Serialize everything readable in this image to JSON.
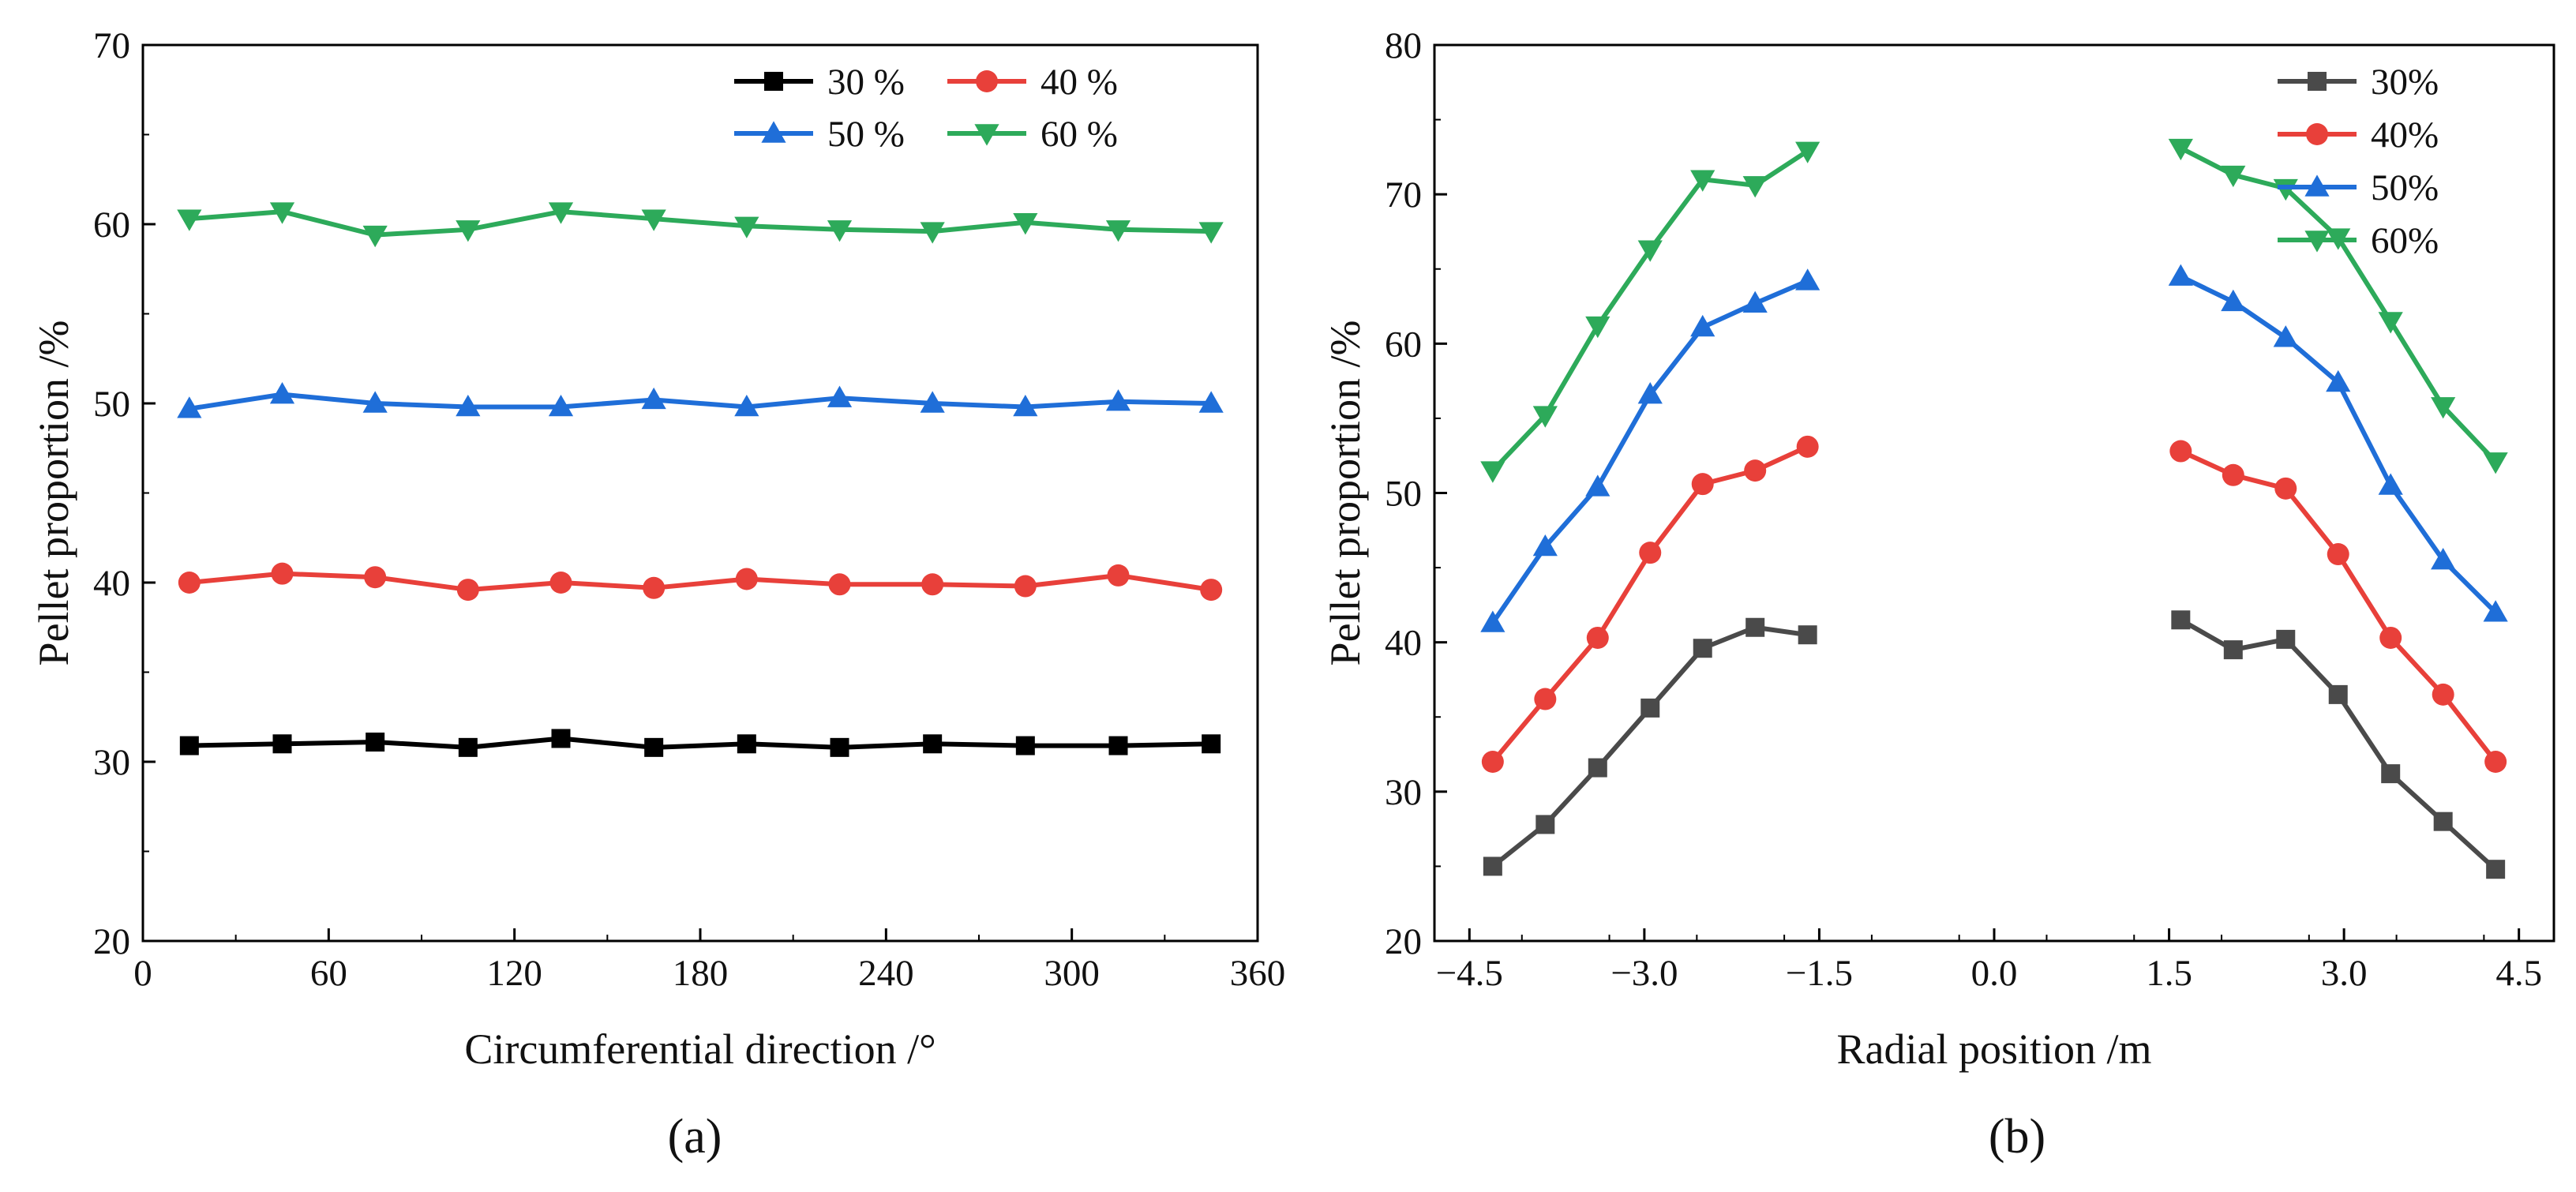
{
  "chart_data": [
    {
      "type": "line",
      "caption": "(a)",
      "xlabel": "Circumferential direction /°",
      "ylabel": "Pellet proportion /%",
      "xlim": [
        0,
        360
      ],
      "ylim": [
        20,
        70
      ],
      "xticks": [
        "0",
        "60",
        "120",
        "180",
        "240",
        "300",
        "360"
      ],
      "yticks": [
        "20",
        "30",
        "40",
        "50",
        "60",
        "70"
      ],
      "legend_position": "top-right",
      "legend_columns": 2,
      "x": [
        15,
        45,
        75,
        105,
        135,
        165,
        195,
        225,
        255,
        285,
        315,
        345
      ],
      "series": [
        {
          "name": "30 %",
          "color": "#000000",
          "marker": "square",
          "values": [
            30.9,
            31.0,
            31.1,
            30.8,
            31.3,
            30.8,
            31.0,
            30.8,
            31.0,
            30.9,
            30.9,
            31.0
          ]
        },
        {
          "name": "40 %",
          "color": "#e8403a",
          "marker": "circle",
          "values": [
            40.0,
            40.5,
            40.3,
            39.6,
            40.0,
            39.7,
            40.2,
            39.9,
            39.9,
            39.8,
            40.4,
            39.6
          ]
        },
        {
          "name": "50 %",
          "color": "#1f6ed8",
          "marker": "triangle-up",
          "values": [
            49.7,
            50.5,
            50.0,
            49.8,
            49.8,
            50.2,
            49.8,
            50.3,
            50.0,
            49.8,
            50.1,
            50.0
          ]
        },
        {
          "name": "60 %",
          "color": "#2daa5a",
          "marker": "triangle-down",
          "values": [
            60.3,
            60.7,
            59.4,
            59.7,
            60.7,
            60.3,
            59.9,
            59.7,
            59.6,
            60.1,
            59.7,
            59.6
          ]
        }
      ]
    },
    {
      "type": "line",
      "caption": "(b)",
      "xlabel": "Radial position /m",
      "ylabel": "Pellet proportion /%",
      "xlim": [
        -4.8,
        4.8
      ],
      "ylim": [
        20,
        80
      ],
      "xticks": [
        "−4.5",
        "−3.0",
        "−1.5",
        "0.0",
        "1.5",
        "3.0",
        "4.5"
      ],
      "yticks": [
        "20",
        "30",
        "40",
        "50",
        "60",
        "70",
        "80"
      ],
      "legend_position": "top-right",
      "legend_columns": 1,
      "segments": [
        [
          -4.3,
          -3.85,
          -3.4,
          -2.95,
          -2.5,
          -2.05,
          -1.6
        ],
        [
          1.6,
          2.05,
          2.5,
          2.95,
          3.4,
          3.85,
          4.3
        ]
      ],
      "series": [
        {
          "name": "30%",
          "color": "#4a4a4a",
          "marker": "square",
          "values": [
            [
              25.0,
              27.8,
              31.6,
              35.6,
              39.6,
              41.0,
              40.5
            ],
            [
              41.5,
              39.5,
              40.2,
              36.5,
              31.2,
              28.0,
              24.8
            ]
          ]
        },
        {
          "name": "40%",
          "color": "#e8403a",
          "marker": "circle",
          "values": [
            [
              32.0,
              36.2,
              40.3,
              46.0,
              50.6,
              51.5,
              53.1
            ],
            [
              52.8,
              51.2,
              50.3,
              45.9,
              40.3,
              36.5,
              32.0
            ]
          ]
        },
        {
          "name": "50%",
          "color": "#1f6ed8",
          "marker": "triangle-up",
          "values": [
            [
              41.3,
              46.4,
              50.4,
              56.6,
              61.1,
              62.7,
              64.2
            ],
            [
              64.5,
              62.8,
              60.4,
              57.4,
              50.5,
              45.5,
              42.0
            ]
          ]
        },
        {
          "name": "60%",
          "color": "#2daa5a",
          "marker": "triangle-down",
          "values": [
            [
              51.5,
              55.2,
              61.2,
              66.3,
              71.0,
              70.6,
              72.9
            ],
            [
              73.1,
              71.3,
              70.4,
              67.1,
              61.5,
              55.8,
              52.1
            ]
          ]
        }
      ]
    }
  ]
}
